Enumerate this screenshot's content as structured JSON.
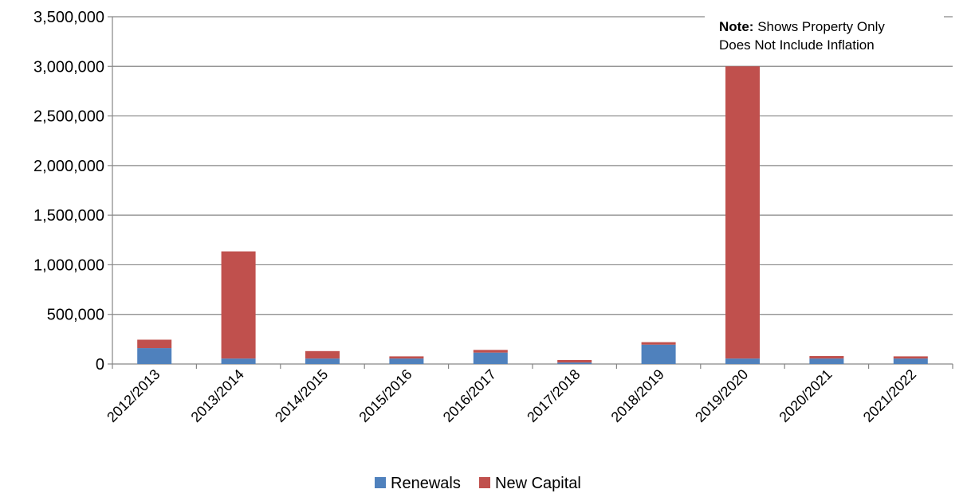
{
  "chart_data": {
    "type": "bar",
    "stacked": true,
    "categories": [
      "2012/2013",
      "2013/2014",
      "2014/2015",
      "2015/2016",
      "2016/2017",
      "2017/2018",
      "2018/2019",
      "2019/2020",
      "2020/2021",
      "2021/2022"
    ],
    "series": [
      {
        "name": "Renewals",
        "color": "#4F81BD",
        "values": [
          160000,
          55000,
          55000,
          55000,
          115000,
          15000,
          195000,
          55000,
          55000,
          55000
        ]
      },
      {
        "name": "New Capital",
        "color": "#C0504D",
        "values": [
          85000,
          1080000,
          75000,
          22000,
          27000,
          25000,
          25000,
          2945000,
          25000,
          22000
        ]
      }
    ],
    "y_ticks": [
      "0",
      "500,000",
      "1,000,000",
      "1,500,000",
      "2,000,000",
      "2,500,000",
      "3,000,000",
      "3,500,000"
    ],
    "ylim": [
      0,
      3500000
    ],
    "grid": true,
    "legend_position": "bottom",
    "note": {
      "label": "Note:",
      "line1": "Shows Property Only",
      "line2": "Does Not Include Inflation"
    }
  }
}
